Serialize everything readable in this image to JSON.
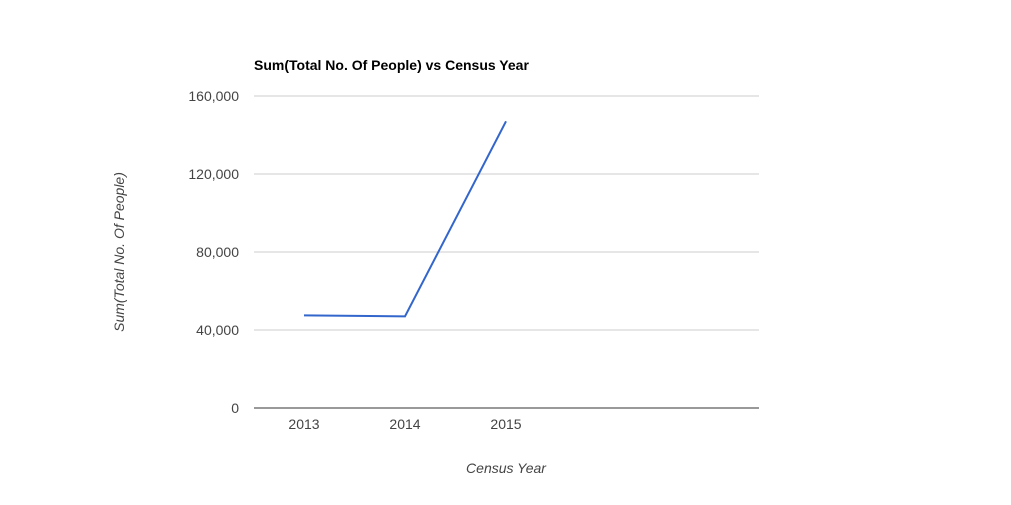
{
  "chart_data": {
    "type": "line",
    "title": "Sum(Total No. Of People) vs Census Year",
    "xlabel": "Census Year",
    "ylabel": "Sum(Total No. Of People)",
    "categories": [
      "2013",
      "2014",
      "2015"
    ],
    "series": [
      {
        "values": [
          47500,
          47000,
          147000
        ]
      }
    ],
    "ylim": [
      0,
      160000
    ],
    "yticks": [
      {
        "value": 0,
        "label": "0"
      },
      {
        "value": 40000,
        "label": "40,000"
      },
      {
        "value": 80000,
        "label": "80,000"
      },
      {
        "value": 120000,
        "label": "120,000"
      },
      {
        "value": 160000,
        "label": "160,000"
      }
    ],
    "grid": true,
    "legend": "none",
    "colors": {
      "series": "#3366cc",
      "grid": "#cccccc",
      "baseline": "#333333",
      "text": "#444444"
    }
  }
}
